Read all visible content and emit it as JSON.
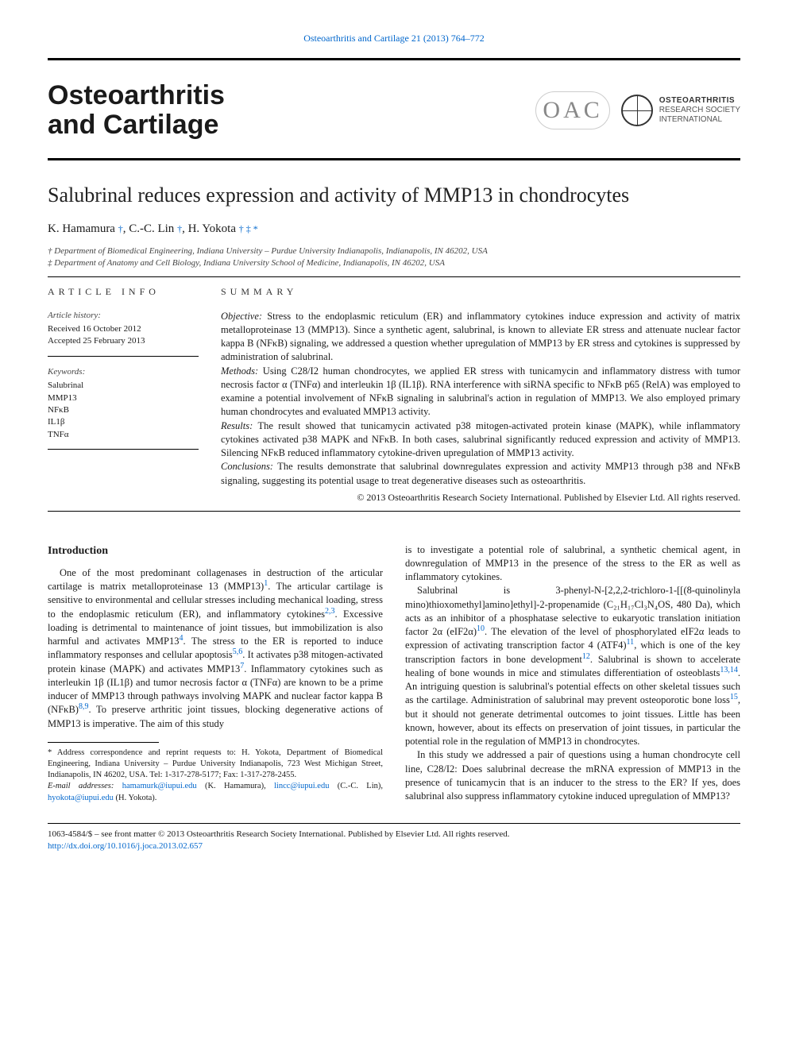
{
  "header": {
    "citation": "Osteoarthritis and Cartilage 21 (2013) 764–772",
    "journal_line1": "Osteoarthritis",
    "journal_line2": "and Cartilage",
    "logo_oac": "OAC",
    "society_l1": "OSTEOARTHRITIS",
    "society_l2": "RESEARCH SOCIETY",
    "society_l3": "INTERNATIONAL"
  },
  "article": {
    "title": "Salubrinal reduces expression and activity of MMP13 in chondrocytes",
    "authors_html": "K. Hamamura †, C.-C. Lin †, H. Yokota † ‡ *",
    "author1": "K. Hamamura",
    "author1_aff": "†",
    "author2": "C.-C. Lin",
    "author2_aff": "†",
    "author3": "H. Yokota",
    "author3_aff": "† ‡ *",
    "aff1": "† Department of Biomedical Engineering, Indiana University – Purdue University Indianapolis, Indianapolis, IN 46202, USA",
    "aff2": "‡ Department of Anatomy and Cell Biology, Indiana University School of Medicine, Indianapolis, IN 46202, USA"
  },
  "info": {
    "left_label": "ARTICLE INFO",
    "history_head": "Article history:",
    "history_received": "Received 16 October 2012",
    "history_accepted": "Accepted 25 February 2013",
    "keywords_head": "Keywords:",
    "kw1": "Salubrinal",
    "kw2": "MMP13",
    "kw3": "NFκB",
    "kw4": "IL1β",
    "kw5": "TNFα"
  },
  "summary": {
    "label": "SUMMARY",
    "objective_head": "Objective:",
    "objective": " Stress to the endoplasmic reticulum (ER) and inflammatory cytokines induce expression and activity of matrix metalloproteinase 13 (MMP13). Since a synthetic agent, salubrinal, is known to alleviate ER stress and attenuate nuclear factor kappa B (NFκB) signaling, we addressed a question whether upregulation of MMP13 by ER stress and cytokines is suppressed by administration of salubrinal.",
    "methods_head": "Methods:",
    "methods": " Using C28/I2 human chondrocytes, we applied ER stress with tunicamycin and inflammatory distress with tumor necrosis factor α (TNFα) and interleukin 1β (IL1β). RNA interference with siRNA specific to NFκB p65 (RelA) was employed to examine a potential involvement of NFκB signaling in salubrinal's action in regulation of MMP13. We also employed primary human chondrocytes and evaluated MMP13 activity.",
    "results_head": "Results:",
    "results": " The result showed that tunicamycin activated p38 mitogen-activated protein kinase (MAPK), while inflammatory cytokines activated p38 MAPK and NFκB. In both cases, salubrinal significantly reduced expression and activity of MMP13. Silencing NFκB reduced inflammatory cytokine-driven upregulation of MMP13 activity.",
    "conclusions_head": "Conclusions:",
    "conclusions": " The results demonstrate that salubrinal downregulates expression and activity MMP13 through p38 and NFκB signaling, suggesting its potential usage to treat degenerative diseases such as osteoarthritis.",
    "copyright": "© 2013 Osteoarthritis Research Society International. Published by Elsevier Ltd. All rights reserved."
  },
  "intro": {
    "heading": "Introduction",
    "p1a": "One of the most predominant collagenases in destruction of the articular cartilage is matrix metalloproteinase 13 (MMP13)",
    "r1": "1",
    "p1b": ". The articular cartilage is sensitive to environmental and cellular stresses including mechanical loading, stress to the endoplasmic reticulum (ER), and inflammatory cytokines",
    "r23": "2,3",
    "p1c": ". Excessive loading is detrimental to maintenance of joint tissues, but immobilization is also harmful and activates MMP13",
    "r4": "4",
    "p1d": ". The stress to the ER is reported to induce inflammatory responses and cellular apoptosis",
    "r56": "5,6",
    "p1e": ". It activates p38 mitogen-activated protein kinase (MAPK) and activates MMP13",
    "r7": "7",
    "p1f": ". Inflammatory cytokines such as interleukin 1β (IL1β) and tumor necrosis factor α (TNFα) are known to be a prime inducer of MMP13 through pathways involving MAPK and nuclear factor kappa B (NFκB)",
    "r89": "8,9",
    "p1g": ". To preserve arthritic joint tissues, blocking degenerative actions of MMP13 is imperative. The aim of this study ",
    "p1h": "is to investigate a potential role of salubrinal, a synthetic chemical agent, in downregulation of MMP13 in the presence of the stress to the ER as well as inflammatory cytokines.",
    "p2a": "Salubrinal is 3-phenyl-N-[2,2,2-trichloro-1-[[(8-quinolinyla mino)thioxomethyl]amino]ethyl]-2-propenamide (C₂₁H₁₇Cl₃N₄OS, 480 Da), which acts as an inhibitor of a phosphatase selective to eukaryotic translation initiation factor 2α (eIF2α)",
    "r10": "10",
    "p2b": ". The elevation of the level of phosphorylated eIF2α leads to expression of activating transcription factor 4 (ATF4)",
    "r11": "11",
    "p2c": ", which is one of the key transcription factors in bone development",
    "r12": "12",
    "p2d": ". Salubrinal is shown to accelerate healing of bone wounds in mice and stimulates differentiation of osteoblasts",
    "r1314": "13,14",
    "p2e": ". An intriguing question is salubrinal's potential effects on other skeletal tissues such as the cartilage. Administration of salubrinal may prevent osteoporotic bone loss",
    "r15": "15",
    "p2f": ", but it should not generate detrimental outcomes to joint tissues. Little has been known, however, about its effects on preservation of joint tissues, in particular the potential role in the regulation of MMP13 in chondrocytes.",
    "p3": "In this study we addressed a pair of questions using a human chondrocyte cell line, C28/I2: Does salubrinal decrease the mRNA expression of MMP13 in the presence of tunicamycin that is an inducer to the stress to the ER? If yes, does salubrinal also suppress inflammatory cytokine induced upregulation of MMP13?"
  },
  "footnote": {
    "corr": "* Address correspondence and reprint requests to: H. Yokota, Department of Biomedical Engineering, Indiana University – Purdue University Indianapolis, 723 West Michigan Street, Indianapolis, IN 46202, USA. Tel: 1-317-278-5177; Fax: 1-317-278-2455.",
    "email_label": "E-mail addresses:",
    "e1": "hamamurk@iupui.edu",
    "e1n": " (K. Hamamura), ",
    "e2": "lincc@iupui.edu",
    "e2n": " (C.-C. Lin), ",
    "e3": "hyokota@iupui.edu",
    "e3n": " (H. Yokota)."
  },
  "footer": {
    "line1": "1063-4584/$ – see front matter © 2013 Osteoarthritis Research Society International. Published by Elsevier Ltd. All rights reserved.",
    "doi": "http://dx.doi.org/10.1016/j.joca.2013.02.657"
  },
  "colors": {
    "link": "#0066cc",
    "text": "#1a1a1a",
    "rule": "#000000",
    "bg": "#ffffff"
  }
}
